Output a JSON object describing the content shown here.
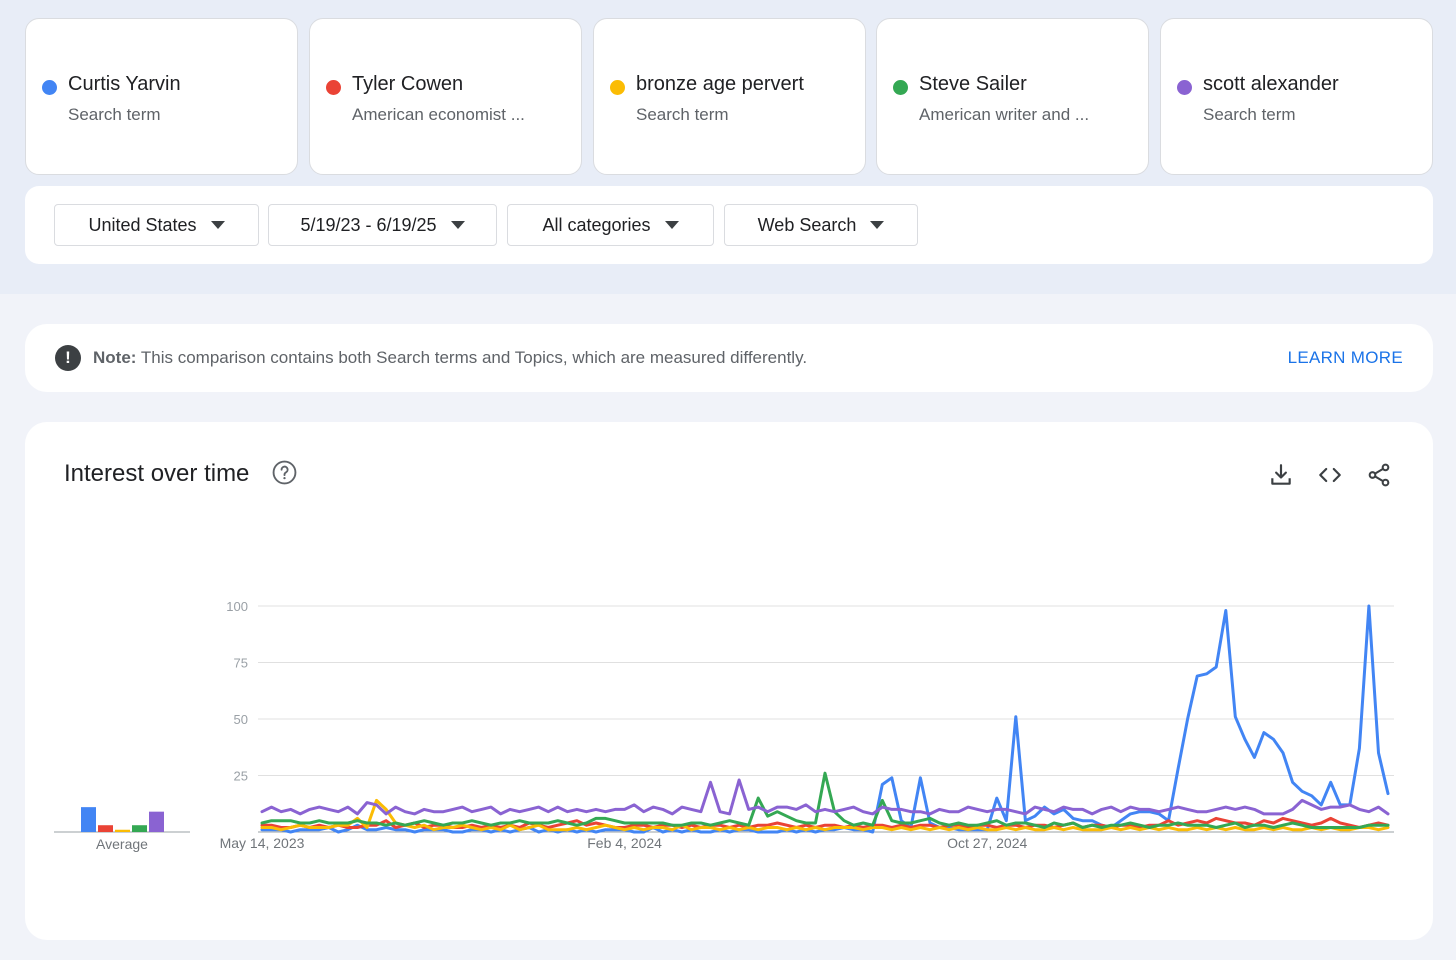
{
  "terms": [
    {
      "label": "Curtis Yarvin",
      "sub": "Search term",
      "color": "#4285f4"
    },
    {
      "label": "Tyler Cowen",
      "sub": "American economist ...",
      "color": "#ea4335"
    },
    {
      "label": "bronze age pervert",
      "sub": "Search term",
      "color": "#fbbc04"
    },
    {
      "label": "Steve Sailer",
      "sub": "American writer and ...",
      "color": "#34a853"
    },
    {
      "label": "scott alexander",
      "sub": "Search term",
      "color": "#8a63d2"
    }
  ],
  "filters": {
    "region": "United States",
    "date_range": "5/19/23 - 6/19/25",
    "category": "All categories",
    "search_type": "Web Search"
  },
  "note": {
    "icon": "alert-icon",
    "label": "Note:",
    "text": "This comparison contains both Search terms and Topics, which are measured differently.",
    "link": "LEARN MORE"
  },
  "chart_panel": {
    "title": "Interest over time",
    "icons": [
      "help-icon",
      "download-icon",
      "embed-icon",
      "share-icon"
    ]
  },
  "chart_data": {
    "type": "line",
    "ylim": [
      0,
      100
    ],
    "yticks": [
      25,
      50,
      75,
      100
    ],
    "x_ticks": [
      "May 14, 2023",
      "Feb 4, 2024",
      "Oct 27, 2024"
    ],
    "x_tick_index": [
      0,
      38,
      76
    ],
    "average": {
      "label": "Average",
      "values": [
        11,
        3,
        1,
        3,
        9
      ]
    },
    "series": [
      {
        "name": "Curtis Yarvin",
        "color": "#4285f4",
        "values": [
          1,
          1,
          1,
          0,
          1,
          1,
          1,
          2,
          0,
          1,
          3,
          1,
          1,
          2,
          1,
          1,
          0,
          1,
          1,
          1,
          0,
          0,
          1,
          1,
          0,
          1,
          0,
          1,
          2,
          0,
          1,
          0,
          1,
          0,
          1,
          0,
          1,
          1,
          1,
          0,
          0,
          2,
          0,
          1,
          0,
          1,
          0,
          0,
          1,
          0,
          1,
          1,
          0,
          0,
          0,
          1,
          0,
          1,
          0,
          1,
          1,
          2,
          1,
          1,
          0,
          21,
          24,
          5,
          2,
          24,
          4,
          2,
          2,
          1,
          1,
          1,
          1,
          15,
          5,
          51,
          5,
          7,
          11,
          8,
          10,
          6,
          5,
          5,
          3,
          2,
          5,
          8,
          9,
          9,
          8,
          5,
          28,
          50,
          69,
          70,
          73,
          98,
          51,
          41,
          33,
          44,
          41,
          35,
          22,
          18,
          16,
          12,
          22,
          12,
          12,
          37,
          100,
          35,
          17
        ]
      },
      {
        "name": "Tyler Cowen",
        "color": "#ea4335",
        "values": [
          3,
          3,
          2,
          2,
          3,
          2,
          3,
          2,
          3,
          2,
          2,
          3,
          3,
          5,
          2,
          3,
          4,
          2,
          3,
          3,
          2,
          2,
          3,
          2,
          3,
          2,
          3,
          2,
          4,
          3,
          2,
          3,
          4,
          5,
          3,
          4,
          3,
          2,
          2,
          3,
          3,
          2,
          3,
          3,
          2,
          3,
          2,
          3,
          3,
          2,
          3,
          2,
          3,
          3,
          4,
          3,
          2,
          3,
          2,
          3,
          3,
          2,
          3,
          2,
          3,
          3,
          2,
          3,
          2,
          3,
          3,
          2,
          3,
          3,
          2,
          3,
          3,
          2,
          3,
          3,
          2,
          3,
          3,
          2,
          3,
          4,
          2,
          3,
          3,
          2,
          3,
          3,
          2,
          3,
          3,
          5,
          3,
          4,
          5,
          4,
          6,
          5,
          4,
          4,
          3,
          5,
          4,
          6,
          5,
          4,
          3,
          4,
          6,
          4,
          3,
          2,
          3,
          4,
          3
        ]
      },
      {
        "name": "bronze age pervert",
        "color": "#fbbc04",
        "values": [
          2,
          2,
          1,
          2,
          3,
          2,
          2,
          2,
          3,
          3,
          6,
          2,
          14,
          10,
          4,
          3,
          2,
          3,
          1,
          2,
          2,
          3,
          2,
          1,
          2,
          1,
          3,
          1,
          2,
          3,
          1,
          1,
          1,
          2,
          1,
          2,
          3,
          2,
          1,
          2,
          1,
          2,
          2,
          1,
          3,
          1,
          2,
          2,
          1,
          2,
          1,
          2,
          1,
          2,
          2,
          1,
          2,
          1,
          2,
          1,
          2,
          2,
          2,
          1,
          2,
          2,
          1,
          2,
          1,
          2,
          1,
          2,
          1,
          2,
          1,
          2,
          1,
          1,
          2,
          1,
          2,
          1,
          1,
          2,
          1,
          2,
          1,
          1,
          1,
          2,
          1,
          2,
          1,
          2,
          1,
          2,
          1,
          1,
          2,
          1,
          2,
          1,
          2,
          1,
          1,
          2,
          1,
          2,
          1,
          1,
          2,
          1,
          2,
          1,
          1,
          2,
          2,
          1,
          2
        ]
      },
      {
        "name": "Steve Sailer",
        "color": "#34a853",
        "values": [
          4,
          5,
          5,
          5,
          4,
          4,
          5,
          4,
          4,
          4,
          5,
          4,
          4,
          3,
          4,
          3,
          4,
          5,
          4,
          3,
          4,
          4,
          5,
          4,
          3,
          4,
          4,
          5,
          4,
          4,
          4,
          5,
          4,
          3,
          4,
          6,
          6,
          5,
          4,
          4,
          4,
          4,
          4,
          3,
          3,
          4,
          4,
          3,
          4,
          5,
          4,
          3,
          15,
          7,
          9,
          7,
          5,
          4,
          4,
          26,
          9,
          5,
          3,
          4,
          3,
          14,
          5,
          4,
          4,
          5,
          6,
          4,
          3,
          4,
          3,
          3,
          4,
          5,
          3,
          4,
          4,
          3,
          2,
          4,
          3,
          4,
          2,
          3,
          2,
          3,
          3,
          4,
          3,
          2,
          3,
          3,
          4,
          3,
          3,
          3,
          2,
          3,
          4,
          2,
          3,
          3,
          2,
          3,
          4,
          3,
          2,
          2,
          2,
          2,
          2,
          2,
          3,
          3,
          3
        ]
      },
      {
        "name": "scott alexander",
        "color": "#8a63d2",
        "values": [
          9,
          11,
          9,
          10,
          8,
          10,
          11,
          10,
          9,
          11,
          8,
          13,
          12,
          8,
          11,
          9,
          8,
          10,
          9,
          9,
          10,
          11,
          9,
          10,
          11,
          8,
          10,
          9,
          10,
          11,
          9,
          11,
          9,
          10,
          9,
          10,
          9,
          10,
          10,
          12,
          9,
          11,
          10,
          8,
          11,
          10,
          9,
          22,
          9,
          8,
          23,
          10,
          11,
          9,
          11,
          11,
          10,
          12,
          9,
          10,
          9,
          10,
          11,
          9,
          8,
          11,
          10,
          10,
          9,
          9,
          8,
          10,
          9,
          9,
          11,
          10,
          9,
          10,
          10,
          9,
          8,
          11,
          10,
          9,
          11,
          10,
          10,
          8,
          10,
          11,
          9,
          11,
          10,
          10,
          9,
          10,
          11,
          10,
          9,
          9,
          10,
          11,
          10,
          11,
          10,
          8,
          8,
          8,
          10,
          14,
          12,
          10,
          11,
          11,
          12,
          10,
          9,
          11,
          8
        ]
      }
    ]
  }
}
